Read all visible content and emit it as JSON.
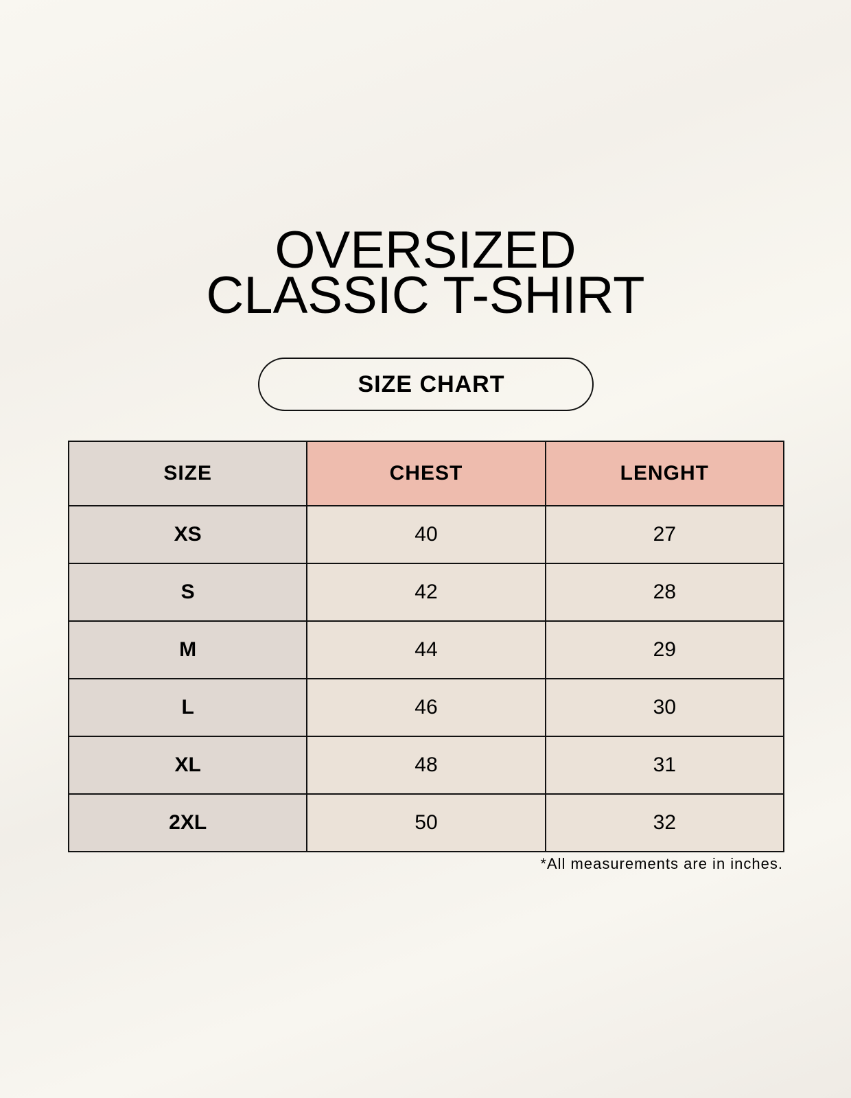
{
  "title": {
    "line1": "OVERSIZED",
    "line2": "CLASSIC T-SHIRT"
  },
  "badge": "SIZE CHART",
  "table": {
    "headers": [
      "SIZE",
      "CHEST",
      "LENGHT"
    ],
    "rows": [
      [
        "XS",
        "40",
        "27"
      ],
      [
        "S",
        "42",
        "28"
      ],
      [
        "M",
        "44",
        "29"
      ],
      [
        "L",
        "46",
        "30"
      ],
      [
        "XL",
        "48",
        "31"
      ],
      [
        "2XL",
        "50",
        "32"
      ]
    ]
  },
  "footnote": "*All measurements are in inches.",
  "colors": {
    "header_accent": "#eebcae",
    "size_column": "#e0d8d2",
    "cell": "#ebe2d8"
  }
}
